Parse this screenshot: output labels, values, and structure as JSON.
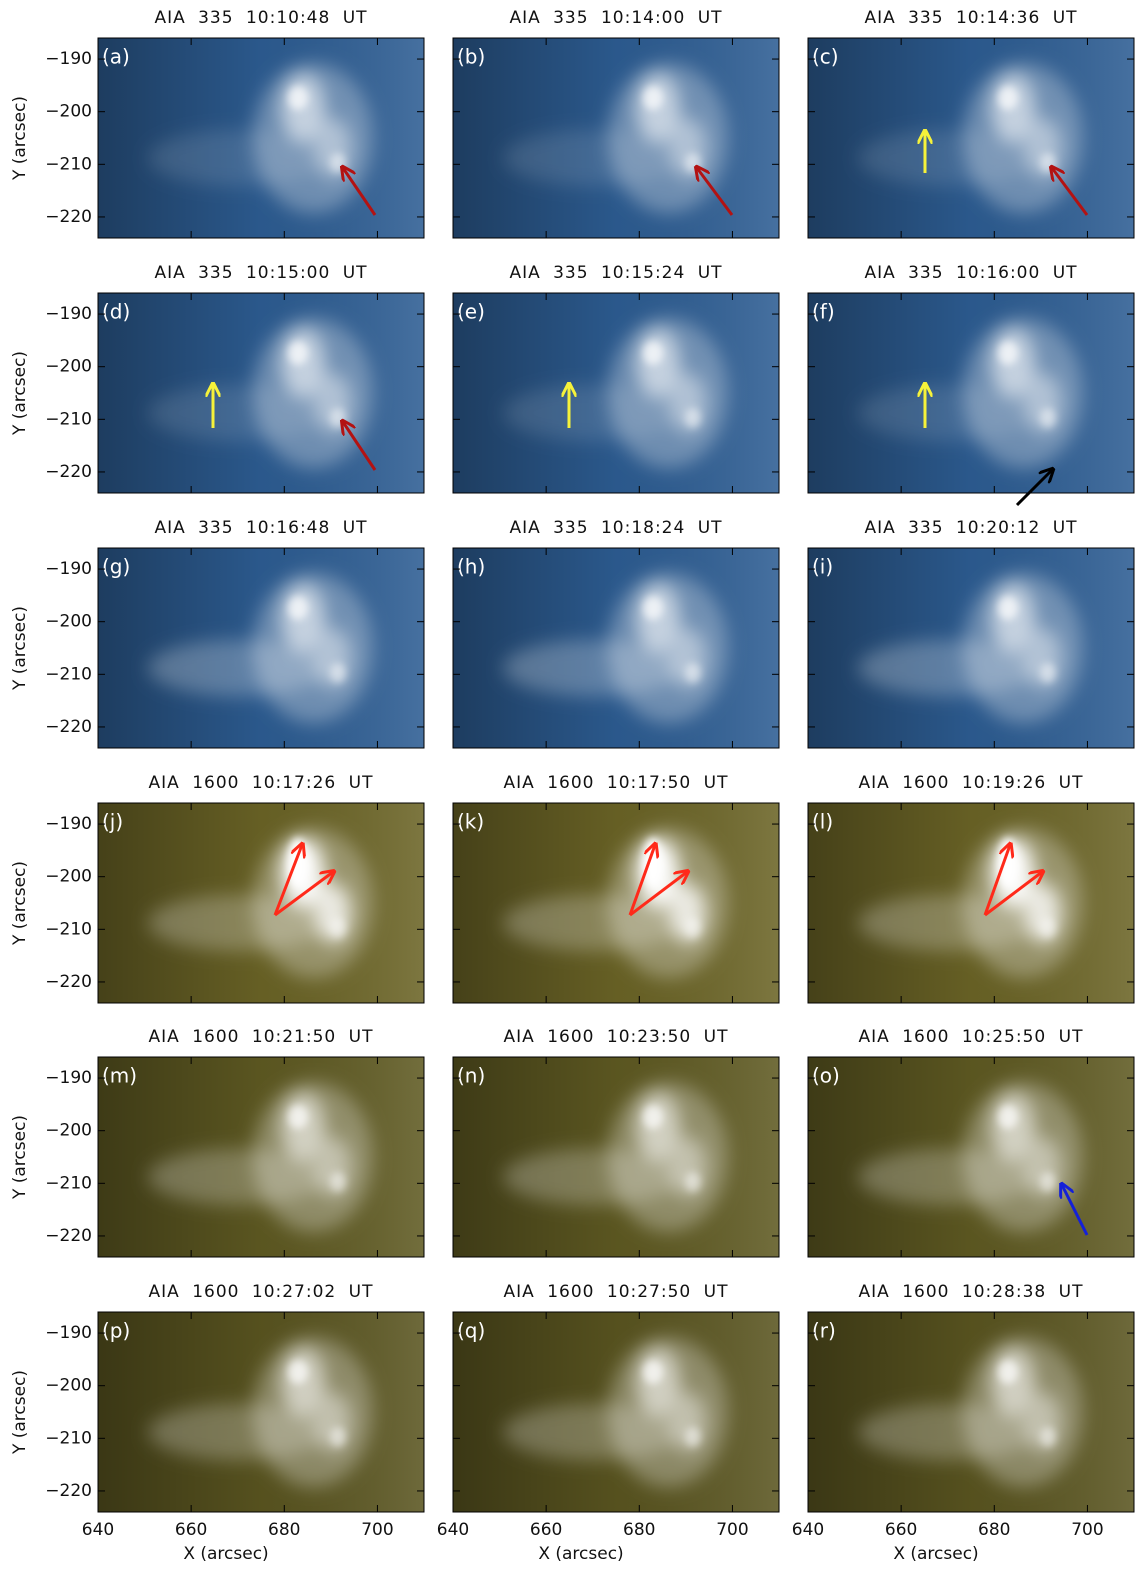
{
  "figure": {
    "xlabel": "X (arcsec)",
    "ylabel": "Y (arcsec)",
    "xlim": [
      640,
      710
    ],
    "ylim": [
      -224,
      -186
    ],
    "xticks": [
      640,
      660,
      680,
      700
    ],
    "yticks": [
      {
        "value": -190,
        "label": "−190"
      },
      {
        "value": -200,
        "label": "−200"
      },
      {
        "value": -210,
        "label": "−210"
      },
      {
        "value": -220,
        "label": "−220"
      }
    ],
    "panels": [
      {
        "title": "AIA 335 10:10:48 UT",
        "label": "(a)",
        "color": "#2d5d93"
      },
      {
        "title": "AIA 335 10:14:00 UT",
        "label": "(b)",
        "color": "#2d5d93"
      },
      {
        "title": "AIA 335 10:14:36 UT",
        "label": "(c)",
        "color": "#2d5d93"
      },
      {
        "title": "AIA 335 10:15:00 UT",
        "label": "(d)",
        "color": "#2d5d93"
      },
      {
        "title": "AIA 335 10:15:24 UT",
        "label": "(e)",
        "color": "#2d5d93"
      },
      {
        "title": "AIA 335 10:16:00 UT",
        "label": "(f)",
        "color": "#2d5d93"
      },
      {
        "title": "AIA 335 10:16:48 UT",
        "label": "(g)",
        "color": "#2d5d93"
      },
      {
        "title": "AIA 335 10:18:24 UT",
        "label": "(h)",
        "color": "#2d5d93"
      },
      {
        "title": "AIA 335 10:20:12 UT",
        "label": "(i)",
        "color": "#2d5d93"
      },
      {
        "title": "AIA 1600 10:17:26 UT",
        "label": "(j)",
        "color": "#6b6426"
      },
      {
        "title": "AIA 1600 10:17:50 UT",
        "label": "(k)",
        "color": "#6b6426"
      },
      {
        "title": "AIA 1600 10:19:26 UT",
        "label": "(l)",
        "color": "#6b6426"
      },
      {
        "title": "AIA 1600 10:21:50 UT",
        "label": "(m)",
        "color": "#5f5a22"
      },
      {
        "title": "AIA 1600 10:23:50 UT",
        "label": "(n)",
        "color": "#5f5a22"
      },
      {
        "title": "AIA 1600 10:25:50 UT",
        "label": "(o)",
        "color": "#5f5a22"
      },
      {
        "title": "AIA 1600 10:27:02 UT",
        "label": "(p)",
        "color": "#5a5520"
      },
      {
        "title": "AIA 1600 10:27:50 UT",
        "label": "(q)",
        "color": "#5a5520"
      },
      {
        "title": "AIA 1600 10:28:38 UT",
        "label": "(r)",
        "color": "#5a5520"
      }
    ]
  }
}
